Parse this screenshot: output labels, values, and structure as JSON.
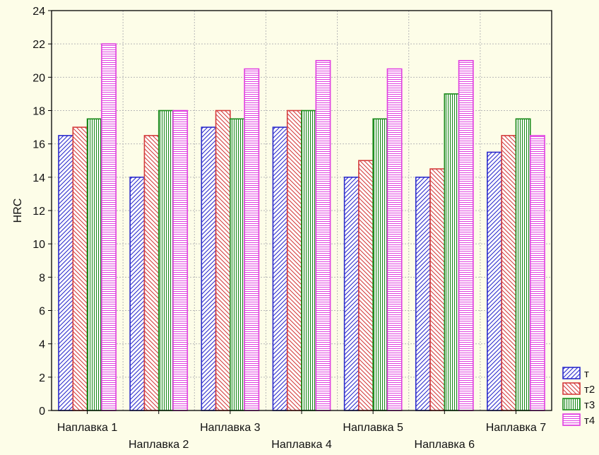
{
  "chart_data": {
    "type": "bar",
    "ylabel": "HRC",
    "xlabel": "",
    "ylim": [
      0,
      24
    ],
    "yticks": [
      "0",
      "2",
      "4",
      "6",
      "8",
      "10",
      "12",
      "14",
      "16",
      "18",
      "20",
      "22",
      "24"
    ],
    "grid": true,
    "legend_position": "bottom-right",
    "categories": [
      "Наплавка  1",
      "Наплавка  2",
      "Наплавка  3",
      "Наплавка  4",
      "Наплавка  5",
      "Наплавка  6",
      "Наплавка  7"
    ],
    "series": [
      {
        "name": "т",
        "color": "#2b2bcc",
        "pattern": "diagonal-right",
        "values": [
          16.5,
          14,
          17,
          17,
          14,
          14,
          15.5
        ]
      },
      {
        "name": "т2",
        "color": "#d43c3c",
        "pattern": "diagonal-left",
        "values": [
          17,
          16.5,
          18,
          18,
          15,
          14.5,
          16.5
        ]
      },
      {
        "name": "т3",
        "color": "#1a8a1a",
        "pattern": "vertical",
        "values": [
          17.5,
          18,
          17.5,
          18,
          17.5,
          19,
          17.5
        ]
      },
      {
        "name": "т4",
        "color": "#e040e0",
        "pattern": "horizontal",
        "values": [
          22,
          18,
          20.5,
          21,
          20.5,
          21,
          16.5
        ]
      }
    ]
  }
}
